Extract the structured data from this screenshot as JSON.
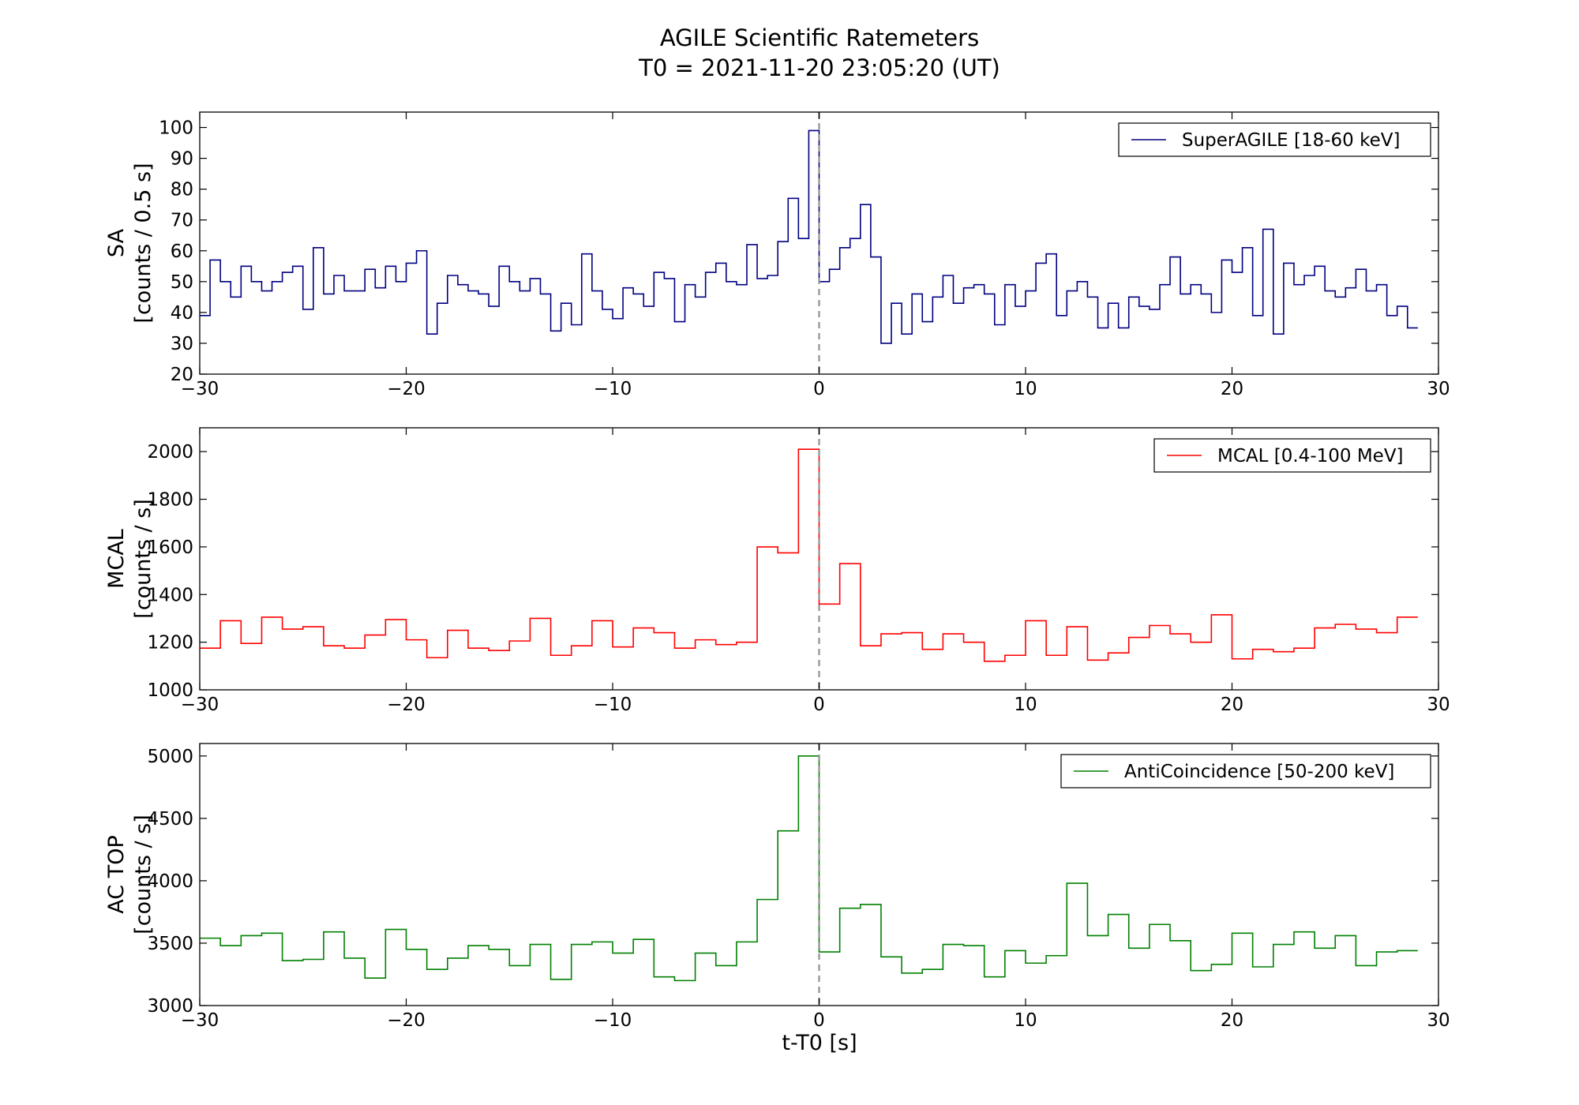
{
  "figure": {
    "title_line1": "AGILE Scientific Ratemeters",
    "title_line2": "T0 = 2021-11-20 23:05:20 (UT)",
    "xlabel": "t-T0 [s]"
  },
  "chart_data": [
    {
      "type": "line",
      "step": true,
      "title": "",
      "ylabel_line1": "SA",
      "ylabel_line2": "[counts / 0.5 s]",
      "xlabel": "",
      "xlim": [
        -30,
        30
      ],
      "ylim": [
        20,
        105
      ],
      "xticks": [
        -30,
        -20,
        -10,
        0,
        10,
        20,
        30
      ],
      "xtick_labels": [
        "−30",
        "−20",
        "−10",
        "0",
        "10",
        "20",
        "30"
      ],
      "yticks": [
        20,
        30,
        40,
        50,
        60,
        70,
        80,
        90,
        100
      ],
      "ytick_labels": [
        "20",
        "30",
        "40",
        "50",
        "60",
        "70",
        "80",
        "90",
        "100"
      ],
      "grid": false,
      "legend_position": "top-right",
      "bin_width": 0.5,
      "x_start": -30,
      "series": [
        {
          "name": "SuperAGILE [18-60 keV]",
          "color": "#000080",
          "values": [
            39,
            57,
            50,
            45,
            55,
            50,
            47,
            50,
            53,
            55,
            41,
            61,
            46,
            52,
            47,
            47,
            54,
            48,
            55,
            50,
            56,
            60,
            33,
            43,
            52,
            49,
            47,
            46,
            42,
            55,
            50,
            47,
            51,
            46,
            34,
            43,
            36,
            59,
            47,
            41,
            38,
            48,
            46,
            42,
            53,
            51,
            37,
            49,
            45,
            53,
            56,
            50,
            49,
            62,
            51,
            52,
            63,
            77,
            64,
            99,
            50,
            54,
            61,
            64,
            75,
            58,
            30,
            43,
            33,
            46,
            37,
            45,
            52,
            43,
            48,
            49,
            46,
            36,
            49,
            42,
            47,
            56,
            59,
            39,
            47,
            50,
            45,
            35,
            43,
            35,
            45,
            42,
            41,
            49,
            58,
            46,
            49,
            46,
            40,
            57,
            53,
            61,
            39,
            67,
            33,
            56,
            49,
            52,
            55,
            47,
            45,
            48,
            54,
            47,
            49,
            39,
            42,
            35
          ]
        }
      ],
      "vline_x": 0
    },
    {
      "type": "line",
      "step": true,
      "title": "",
      "ylabel_line1": "MCAL",
      "ylabel_line2": "[counts / s]",
      "xlabel": "",
      "xlim": [
        -30,
        30
      ],
      "ylim": [
        1000,
        2100
      ],
      "xticks": [
        -30,
        -20,
        -10,
        0,
        10,
        20,
        30
      ],
      "xtick_labels": [
        "−30",
        "−20",
        "−10",
        "0",
        "10",
        "20",
        "30"
      ],
      "yticks": [
        1000,
        1200,
        1400,
        1600,
        1800,
        2000
      ],
      "ytick_labels": [
        "1000",
        "1200",
        "1400",
        "1600",
        "1800",
        "2000"
      ],
      "grid": false,
      "legend_position": "top-right",
      "bin_width": 1,
      "x_start": -30,
      "series": [
        {
          "name": "MCAL [0.4-100 MeV]",
          "color": "#ff0000",
          "values": [
            1175,
            1290,
            1195,
            1305,
            1255,
            1265,
            1185,
            1175,
            1230,
            1295,
            1210,
            1135,
            1250,
            1175,
            1165,
            1205,
            1300,
            1145,
            1185,
            1290,
            1180,
            1260,
            1240,
            1175,
            1210,
            1190,
            1200,
            1600,
            1575,
            2010,
            1360,
            1530,
            1185,
            1235,
            1240,
            1170,
            1235,
            1200,
            1120,
            1145,
            1290,
            1145,
            1265,
            1125,
            1155,
            1220,
            1270,
            1235,
            1200,
            1315,
            1130,
            1170,
            1160,
            1175,
            1260,
            1275,
            1255,
            1240,
            1305
          ]
        }
      ],
      "vline_x": 0
    },
    {
      "type": "line",
      "step": true,
      "title": "",
      "ylabel_line1": "AC TOP",
      "ylabel_line2": "[counts / s]",
      "xlabel": "t-T0 [s]",
      "xlim": [
        -30,
        30
      ],
      "ylim": [
        3000,
        5100
      ],
      "xticks": [
        -30,
        -20,
        -10,
        0,
        10,
        20,
        30
      ],
      "xtick_labels": [
        "−30",
        "−20",
        "−10",
        "0",
        "10",
        "20",
        "30"
      ],
      "yticks": [
        3000,
        3500,
        4000,
        4500,
        5000
      ],
      "ytick_labels": [
        "3000",
        "3500",
        "4000",
        "4500",
        "5000"
      ],
      "grid": false,
      "legend_position": "top-right",
      "bin_width": 1,
      "x_start": -30,
      "series": [
        {
          "name": "AntiCoincidence [50-200 keV]",
          "color": "#008000",
          "values": [
            3540,
            3480,
            3560,
            3580,
            3360,
            3370,
            3590,
            3380,
            3220,
            3610,
            3450,
            3290,
            3380,
            3480,
            3450,
            3320,
            3490,
            3210,
            3490,
            3510,
            3420,
            3530,
            3230,
            3200,
            3420,
            3320,
            3510,
            3850,
            4400,
            5000,
            3430,
            3780,
            3810,
            3390,
            3260,
            3290,
            3490,
            3480,
            3230,
            3440,
            3340,
            3400,
            3980,
            3560,
            3730,
            3460,
            3650,
            3520,
            3280,
            3330,
            3580,
            3310,
            3490,
            3590,
            3460,
            3560,
            3320,
            3430,
            3440
          ]
        }
      ],
      "vline_x": 0
    }
  ]
}
